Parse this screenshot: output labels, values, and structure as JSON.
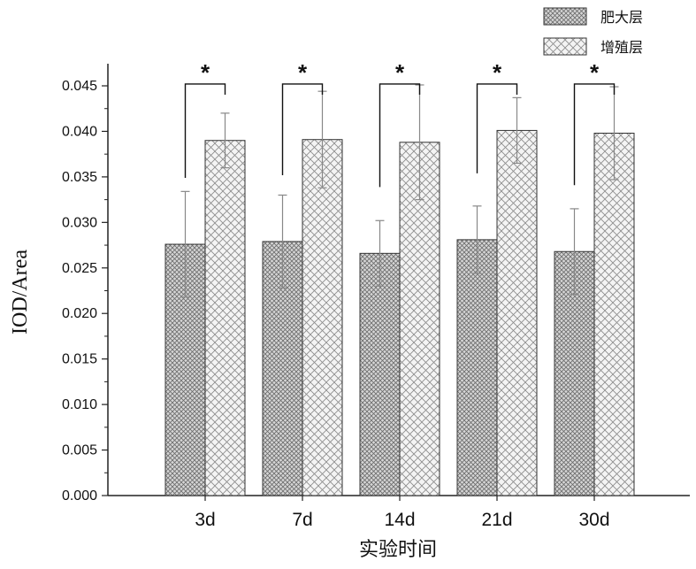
{
  "chart_data": {
    "type": "bar",
    "title": "",
    "xlabel": "实验时间",
    "ylabel": "IOD/Area",
    "ylim": [
      0,
      0.047
    ],
    "yticks": [
      "0.000",
      "0.005",
      "0.010",
      "0.015",
      "0.020",
      "0.025",
      "0.030",
      "0.035",
      "0.040",
      "0.045"
    ],
    "categories": [
      "3d",
      "7d",
      "14d",
      "21d",
      "30d"
    ],
    "series": [
      {
        "name": "肥大层",
        "values": [
          0.0276,
          0.0279,
          0.0266,
          0.0281,
          0.0268
        ],
        "errors": [
          0.0058,
          0.0051,
          0.0036,
          0.0037,
          0.0047
        ],
        "pattern": "dense-crosshatch"
      },
      {
        "name": "增殖层",
        "values": [
          0.039,
          0.0391,
          0.0388,
          0.0401,
          0.0398
        ],
        "errors": [
          0.003,
          0.0053,
          0.0063,
          0.0036,
          0.0051
        ],
        "pattern": "open-crosshatch"
      }
    ],
    "significance": [
      "*",
      "*",
      "*",
      "*",
      "*"
    ],
    "legend_position": "top-right",
    "grid": false
  }
}
